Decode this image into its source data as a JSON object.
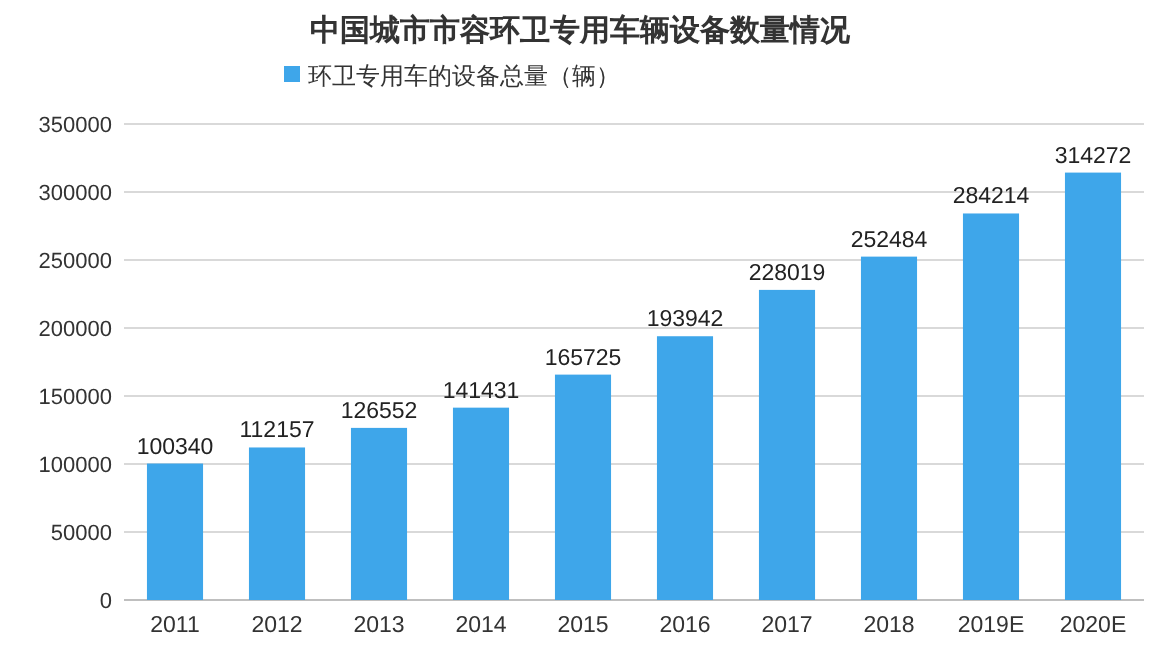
{
  "chart_data": {
    "type": "bar",
    "title": "中国城市市容环卫专用车辆设备数量情况",
    "categories": [
      "2011",
      "2012",
      "2013",
      "2014",
      "2015",
      "2016",
      "2017",
      "2018",
      "2019E",
      "2020E"
    ],
    "series": [
      {
        "name": "环卫专用车的设备总量（辆）",
        "color": "#3ea6ea",
        "values": [
          100340,
          112157,
          126552,
          141431,
          165725,
          193942,
          228019,
          252484,
          284214,
          314272
        ]
      }
    ],
    "ylim": [
      0,
      350000
    ],
    "yticks": [
      0,
      50000,
      100000,
      150000,
      200000,
      250000,
      300000,
      350000
    ],
    "grid": "y",
    "legend": "top left",
    "data_labels": true
  }
}
